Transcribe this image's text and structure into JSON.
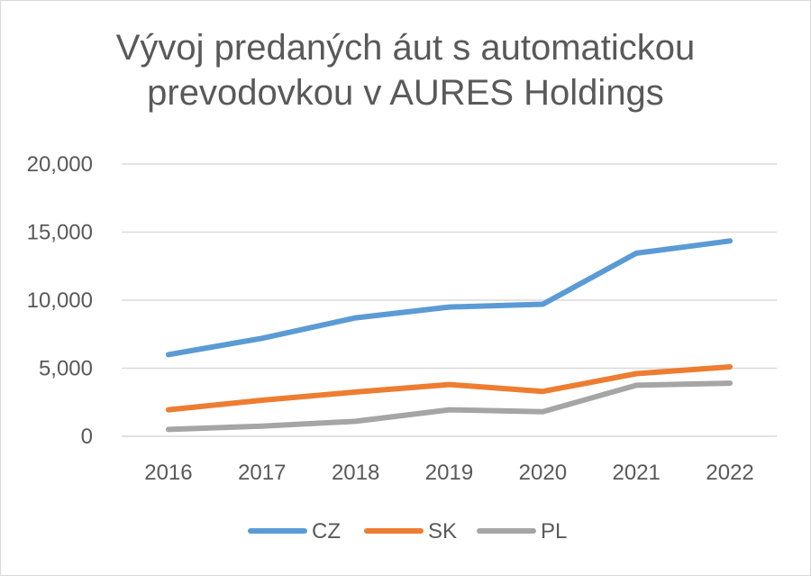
{
  "chart_data": {
    "type": "line",
    "title_lines": [
      "Vývoj predaných áut s automatickou",
      "prevodovkou v AURES Holdings"
    ],
    "categories": [
      "2016",
      "2017",
      "2018",
      "2019",
      "2020",
      "2021",
      "2022"
    ],
    "y_ticks": [
      "0",
      "5,000",
      "10,000",
      "15,000",
      "20,000"
    ],
    "ylim": [
      0,
      20000
    ],
    "grid": true,
    "legend_position": "bottom",
    "series": [
      {
        "name": "CZ",
        "color": "#5b9bd5",
        "values": [
          6000,
          7200,
          8700,
          9500,
          9700,
          13450,
          14350
        ]
      },
      {
        "name": "SK",
        "color": "#ed7d31",
        "values": [
          1950,
          2650,
          3250,
          3800,
          3300,
          4600,
          5100
        ]
      },
      {
        "name": "PL",
        "color": "#a5a5a5",
        "values": [
          500,
          750,
          1100,
          1950,
          1800,
          3750,
          3900
        ]
      }
    ]
  }
}
